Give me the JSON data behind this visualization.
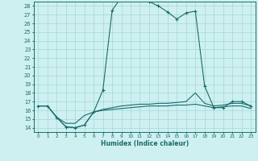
{
  "xlabel": "Humidex (Indice chaleur)",
  "ylabel": "",
  "xlim": [
    -0.5,
    23.5
  ],
  "ylim": [
    13.5,
    28.5
  ],
  "xticks": [
    0,
    1,
    2,
    3,
    4,
    5,
    6,
    7,
    8,
    9,
    10,
    11,
    12,
    13,
    14,
    15,
    16,
    17,
    18,
    19,
    20,
    21,
    22,
    23
  ],
  "yticks": [
    14,
    15,
    16,
    17,
    18,
    19,
    20,
    21,
    22,
    23,
    24,
    25,
    26,
    27,
    28
  ],
  "bg_color": "#cff0f0",
  "line_color": "#1a6b6b",
  "grid_color": "#a0d8d8",
  "lines": [
    {
      "x": [
        0,
        1,
        2,
        3,
        4,
        5,
        6,
        7,
        8,
        9,
        10,
        11,
        12,
        13,
        14,
        15,
        16,
        17,
        18,
        19,
        20,
        21,
        22,
        23
      ],
      "y": [
        16.5,
        16.5,
        15.2,
        14.1,
        14.0,
        14.3,
        15.8,
        18.3,
        27.5,
        29.0,
        28.8,
        28.8,
        28.5,
        28.0,
        27.3,
        26.5,
        27.2,
        27.4,
        18.8,
        16.3,
        16.3,
        17.0,
        17.0,
        16.5
      ],
      "marker": "+"
    },
    {
      "x": [
        0,
        1,
        2,
        3,
        4,
        5,
        6,
        7,
        8,
        9,
        10,
        11,
        12,
        13,
        14,
        15,
        16,
        17,
        18,
        19,
        20,
        21,
        22,
        23
      ],
      "y": [
        16.5,
        16.5,
        15.2,
        14.1,
        14.0,
        14.3,
        15.8,
        16.1,
        16.3,
        16.5,
        16.6,
        16.7,
        16.7,
        16.8,
        16.8,
        16.9,
        17.0,
        18.0,
        16.8,
        16.5,
        16.6,
        16.8,
        16.8,
        16.5
      ],
      "marker": null
    },
    {
      "x": [
        0,
        1,
        2,
        3,
        4,
        5,
        6,
        7,
        8,
        9,
        10,
        11,
        12,
        13,
        14,
        15,
        16,
        17,
        18,
        19,
        20,
        21,
        22,
        23
      ],
      "y": [
        16.5,
        16.5,
        15.2,
        14.5,
        14.5,
        15.4,
        15.8,
        16.0,
        16.1,
        16.2,
        16.3,
        16.4,
        16.5,
        16.5,
        16.5,
        16.6,
        16.6,
        16.7,
        16.5,
        16.3,
        16.4,
        16.5,
        16.5,
        16.2
      ],
      "marker": null
    }
  ]
}
